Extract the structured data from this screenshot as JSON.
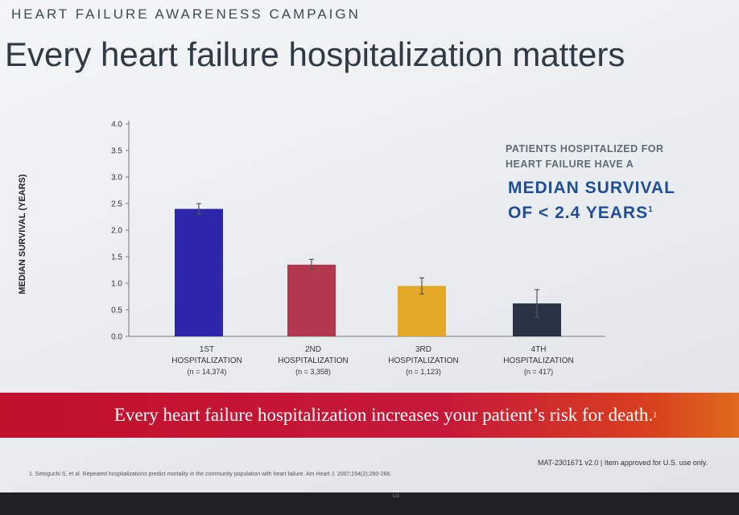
{
  "header": {
    "eyebrow": "HEART FAILURE AWARENESS CAMPAIGN",
    "title": "Every heart failure hospitalization matters"
  },
  "callout": {
    "lead": "PATIENTS HOSPITALIZED FOR HEART FAILURE HAVE A",
    "headline_1": "MEDIAN SURVIVAL",
    "headline_2": "OF < 2.4 YEARS",
    "headline_ref": "1"
  },
  "banner": {
    "text": "Every heart failure hospitalization increases your patient’s risk for death.",
    "ref": "1"
  },
  "footer": {
    "footnote": "1. Setoguchi S, et al. Repeated hospitalizations predict mortality in the community population with heart failure. Am Heart J. 2007;154(2):260-266.",
    "code": "MAT-2301671 v2.0 | Item approved for U.S. use only."
  },
  "bezel": {
    "logo": "LG"
  },
  "chart_data": {
    "type": "bar",
    "ylabel": "MEDIAN SURVIVAL (YEARS)",
    "ylim": [
      0,
      4.0
    ],
    "yticks": [
      "0.0",
      "0.5",
      "1.0",
      "1.5",
      "2.0",
      "2.5",
      "3.0",
      "3.5",
      "4.0"
    ],
    "grid": false,
    "categories": [
      {
        "line1": "1ST",
        "line2": "HOSPITALIZATION",
        "line3": "(n = 14,374)"
      },
      {
        "line1": "2ND",
        "line2": "HOSPITALIZATION",
        "line3": "(n = 3,358)"
      },
      {
        "line1": "3RD",
        "line2": "HOSPITALIZATION",
        "line3": "(n = 1,123)"
      },
      {
        "line1": "4TH",
        "line2": "HOSPITALIZATION",
        "line3": "(n = 417)"
      }
    ],
    "values": [
      2.4,
      1.35,
      0.95,
      0.62
    ],
    "error_upper": [
      2.5,
      1.45,
      1.1,
      0.88
    ],
    "error_lower": [
      2.3,
      1.25,
      0.8,
      0.36
    ],
    "colors": [
      "#2e26a8",
      "#b3384f",
      "#e4a826",
      "#2a3344"
    ]
  }
}
